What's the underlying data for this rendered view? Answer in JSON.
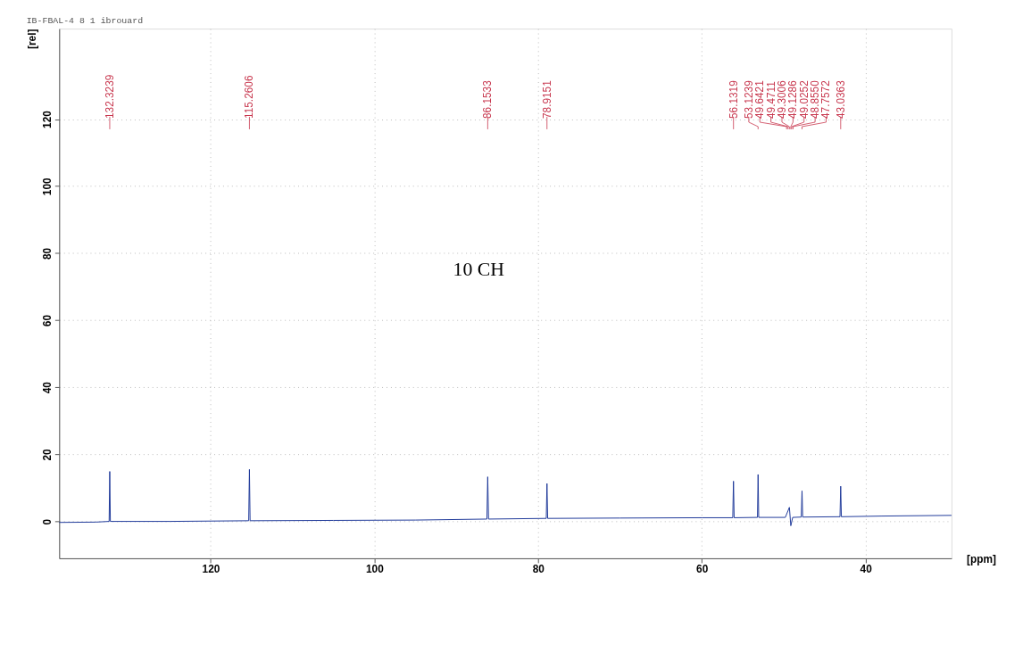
{
  "chart_data": {
    "type": "line",
    "title": "IB-FBAL-4  8  1  ibrouard",
    "xlabel": "[ppm]",
    "ylabel": "[rel]",
    "xlim": [
      138.5,
      29.5
    ],
    "xticks": [
      120,
      100,
      80,
      60,
      40
    ],
    "ylim": [
      -11,
      147
    ],
    "yticks": [
      0,
      20,
      40,
      60,
      80,
      100,
      120
    ],
    "grid": true,
    "series": [
      {
        "color": "#1f3a9a",
        "x": [
          138.5,
          134,
          132.4,
          132.3239,
          132.25,
          125,
          115.35,
          115.2606,
          115.18,
          105,
          95,
          86.25,
          86.1533,
          86.05,
          79.0,
          78.9151,
          78.83,
          70,
          60,
          56.22,
          56.1319,
          56.05,
          53.2,
          53.1239,
          53.05,
          49.8,
          49.3006,
          49.1286,
          48.9,
          47.85,
          47.7572,
          47.68,
          43.12,
          43.0363,
          42.95,
          38,
          29.5
        ],
        "values": [
          -0.3,
          -0.2,
          0,
          14.9,
          0,
          0,
          0.2,
          15.5,
          0.2,
          0.3,
          0.4,
          0.7,
          13.3,
          0.7,
          0.9,
          11.3,
          0.9,
          1.0,
          1.1,
          1.1,
          12.0,
          1.1,
          1.2,
          14.0,
          1.2,
          1.2,
          4.2,
          -1.3,
          1.2,
          1.3,
          9.1,
          1.3,
          1.4,
          10.5,
          1.4,
          1.6,
          1.8
        ]
      }
    ],
    "annotations": [
      {
        "text": "132.3239",
        "x": 132.3239
      },
      {
        "text": "115.2606",
        "x": 115.2606
      },
      {
        "text": "86.1533",
        "x": 86.1533
      },
      {
        "text": "78.9151",
        "x": 78.9151
      },
      {
        "text": "56.1319",
        "x": 56.1319
      },
      {
        "text": "53.1239",
        "x": 53.1239
      },
      {
        "text": "49.6421",
        "x": 49.6421
      },
      {
        "text": "49.4711",
        "x": 49.4711
      },
      {
        "text": "49.3006",
        "x": 49.3006
      },
      {
        "text": "49.1286",
        "x": 49.1286
      },
      {
        "text": "49.0252",
        "x": 49.0252
      },
      {
        "text": "48.8550",
        "x": 48.855
      },
      {
        "text": "47.7572",
        "x": 47.7572
      },
      {
        "text": "43.0363",
        "x": 43.0363
      },
      "10 CH"
    ]
  }
}
